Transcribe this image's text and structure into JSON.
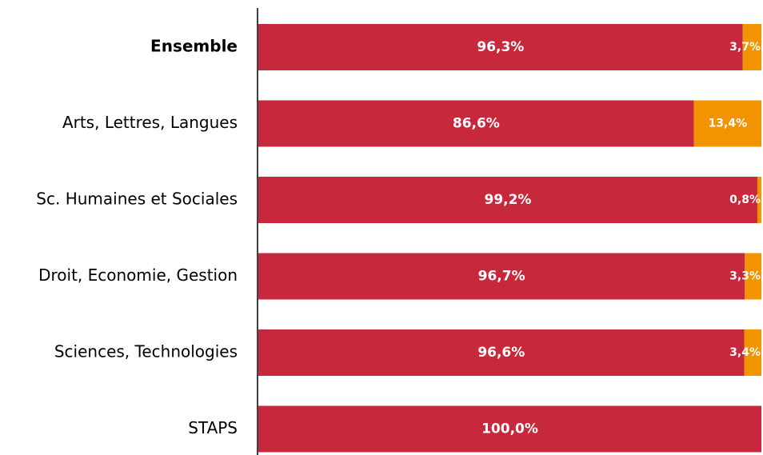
{
  "chart_data": {
    "type": "stacked-bar-horizontal",
    "categories": [
      "Ensemble",
      "Arts, Lettres, Langues",
      "Sc. Humaines et Sociales",
      "Droit, Economie, Gestion",
      "Sciences, Technologies",
      "STAPS"
    ],
    "series": [
      {
        "color": "#c8283c",
        "values": [
          96.3,
          86.6,
          99.2,
          96.7,
          96.6,
          100.0
        ],
        "value_labels": [
          "96,3%",
          "86,6%",
          "99,2%",
          "96,7%",
          "96,6%",
          "100,0%"
        ]
      },
      {
        "color": "#f29400",
        "values": [
          3.7,
          13.4,
          0.8,
          3.3,
          3.4,
          0
        ],
        "value_labels": [
          "3,7%",
          "13,4%",
          "0,8%",
          "3,3%",
          "3,4%",
          null
        ]
      }
    ],
    "xlim": [
      0,
      100
    ]
  }
}
